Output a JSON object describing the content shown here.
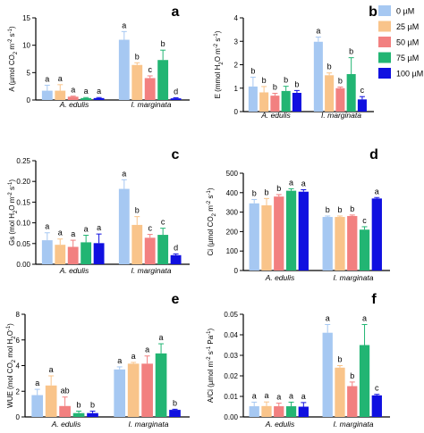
{
  "colors": {
    "0 µM": "#a6c8f2",
    "25 µM": "#f9c48a",
    "50 µM": "#f28080",
    "75 µM": "#22b573",
    "100 µM": "#1010e0"
  },
  "legend": [
    "0 µM",
    "25 µM",
    "50 µM",
    "75 µM",
    "100 µM"
  ],
  "chart_data": [
    {
      "panel": "a",
      "type": "bar",
      "ylabel_parts": [
        [
          "A (µmol CO",
          ""
        ],
        [
          "2",
          "sub"
        ],
        [
          " m",
          ""
        ],
        [
          "-2",
          "sup"
        ],
        [
          " s",
          ""
        ],
        [
          "-1",
          "sup"
        ],
        [
          ")",
          ""
        ]
      ],
      "ylim": [
        0,
        15
      ],
      "yticks": [
        0,
        5,
        10,
        15
      ],
      "categories": [
        "A. edulis",
        "I. marginata"
      ],
      "values": [
        [
          1.7,
          1.7,
          0.6,
          0.35,
          0.35
        ],
        [
          11.0,
          6.4,
          4.0,
          7.3,
          0.3
        ]
      ],
      "errors": [
        [
          1.0,
          1.1,
          0.1,
          0.1,
          0.1
        ],
        [
          1.5,
          0.4,
          0.4,
          1.8,
          0.1
        ]
      ],
      "letters": [
        [
          "a",
          "a",
          "a",
          "a",
          "a"
        ],
        [
          "a",
          "b",
          "c",
          "b",
          "d"
        ]
      ]
    },
    {
      "panel": "b",
      "type": "bar",
      "ylabel_parts": [
        [
          "E (mmol H",
          ""
        ],
        [
          "2",
          "sub"
        ],
        [
          "O m",
          ""
        ],
        [
          "-2",
          "sup"
        ],
        [
          " s",
          ""
        ],
        [
          "-1",
          "sup"
        ],
        [
          ")",
          ""
        ]
      ],
      "ylim": [
        0,
        4
      ],
      "yticks": [
        0,
        1,
        2,
        3,
        4
      ],
      "categories": [
        "A. edulis",
        "I. marginata"
      ],
      "values": [
        [
          1.07,
          0.82,
          0.68,
          0.88,
          0.8
        ],
        [
          2.98,
          1.55,
          1.0,
          1.6,
          0.52
        ]
      ],
      "errors": [
        [
          0.4,
          0.25,
          0.1,
          0.2,
          0.1
        ],
        [
          0.2,
          0.1,
          0.05,
          0.7,
          0.12
        ]
      ],
      "letters": [
        [
          "b",
          "b",
          "b",
          "b",
          "b"
        ],
        [
          "a",
          "b",
          "b",
          "b",
          "c"
        ]
      ]
    },
    {
      "panel": "c",
      "type": "bar",
      "ylabel_parts": [
        [
          "Gs (mol H",
          ""
        ],
        [
          "2",
          "sub"
        ],
        [
          "O m",
          ""
        ],
        [
          "-2",
          "sup"
        ],
        [
          " s",
          ""
        ],
        [
          "-1",
          "sup"
        ],
        [
          ")",
          ""
        ]
      ],
      "ylim": [
        0,
        0.25
      ],
      "yticks": [
        0.0,
        0.05,
        0.1,
        0.15,
        0.2,
        0.25
      ],
      "categories": [
        "A. edulis",
        "I. marginata"
      ],
      "values": [
        [
          0.058,
          0.047,
          0.042,
          0.053,
          0.051
        ],
        [
          0.182,
          0.095,
          0.064,
          0.071,
          0.022
        ]
      ],
      "errors": [
        [
          0.018,
          0.014,
          0.016,
          0.017,
          0.022
        ],
        [
          0.022,
          0.02,
          0.008,
          0.016,
          0.003
        ]
      ],
      "letters": [
        [
          "a",
          "a",
          "a",
          "a",
          "a"
        ],
        [
          "a",
          "b",
          "c",
          "c",
          "d"
        ]
      ]
    },
    {
      "panel": "d",
      "type": "bar",
      "ylabel_parts": [
        [
          "Ci (µmol CO",
          ""
        ],
        [
          "2",
          "sub"
        ],
        [
          " m",
          ""
        ],
        [
          "-2",
          "sup"
        ],
        [
          " s",
          ""
        ],
        [
          "-1",
          "sup"
        ],
        [
          ")",
          ""
        ]
      ],
      "ylim": [
        0,
        500
      ],
      "yticks": [
        0,
        100,
        200,
        300,
        400,
        500
      ],
      "categories": [
        "A. edulis",
        "I. marginata"
      ],
      "values": [
        [
          345,
          335,
          380,
          410,
          405
        ],
        [
          275,
          275,
          280,
          210,
          370
        ]
      ],
      "errors": [
        [
          20,
          35,
          10,
          10,
          10
        ],
        [
          5,
          5,
          5,
          15,
          5
        ]
      ],
      "letters": [
        [
          "b",
          "b",
          "b",
          "a",
          "a"
        ],
        [
          "b",
          "b",
          "b",
          "c",
          "a"
        ]
      ]
    },
    {
      "panel": "e",
      "type": "bar",
      "ylabel_parts": [
        [
          "WUE (mol CO",
          ""
        ],
        [
          "2",
          "sub"
        ],
        [
          " mol H",
          ""
        ],
        [
          "2",
          "sub"
        ],
        [
          "O",
          ""
        ],
        [
          "-1",
          "sup"
        ],
        [
          ")",
          ""
        ]
      ],
      "ylim": [
        0,
        8
      ],
      "yticks": [
        0,
        2,
        4,
        6,
        8
      ],
      "categories": [
        "A. edulis",
        "I. marginata"
      ],
      "values": [
        [
          1.7,
          2.45,
          0.85,
          0.3,
          0.3
        ],
        [
          3.7,
          4.15,
          4.15,
          4.95,
          0.55
        ]
      ],
      "errors": [
        [
          0.45,
          0.75,
          0.7,
          0.15,
          0.15
        ],
        [
          0.2,
          0.1,
          0.6,
          0.75,
          0.05
        ]
      ],
      "letters": [
        [
          "a",
          "a",
          "ab",
          "b",
          "b"
        ],
        [
          "a",
          "a",
          "a",
          "a",
          "b"
        ]
      ]
    },
    {
      "panel": "f",
      "type": "bar",
      "ylabel_parts": [
        [
          "A/Ci (µmol m",
          ""
        ],
        [
          "-2",
          "sup"
        ],
        [
          " s",
          ""
        ],
        [
          "-1",
          "sup"
        ],
        [
          " Pa",
          ""
        ],
        [
          "-1",
          "sup"
        ],
        [
          ")",
          ""
        ]
      ],
      "ylim": [
        0,
        0.05
      ],
      "yticks": [
        0.0,
        0.01,
        0.02,
        0.03,
        0.04,
        0.05
      ],
      "categories": [
        "A. edulis",
        "I. marginata"
      ],
      "values": [
        [
          0.0052,
          0.0053,
          0.0052,
          0.0052,
          0.005
        ],
        [
          0.041,
          0.024,
          0.015,
          0.035,
          0.0105
        ]
      ],
      "errors": [
        [
          0.002,
          0.002,
          0.0015,
          0.002,
          0.002
        ],
        [
          0.004,
          0.001,
          0.002,
          0.01,
          0.0005
        ]
      ],
      "letters": [
        [
          "a",
          "a",
          "a",
          "a",
          "a"
        ],
        [
          "a",
          "b",
          "b",
          "a",
          "c"
        ]
      ]
    }
  ]
}
